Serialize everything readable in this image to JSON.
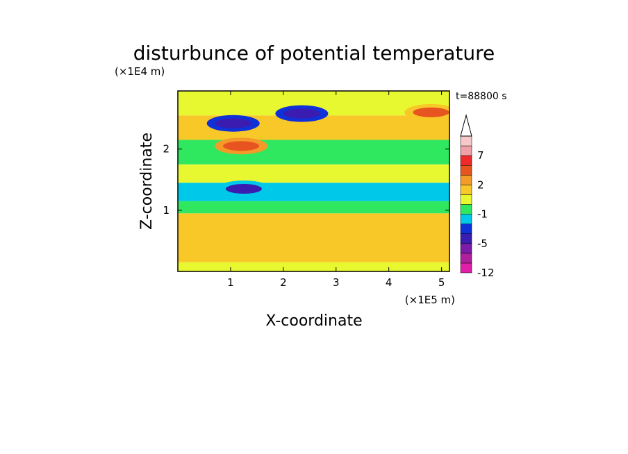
{
  "chart_data": {
    "type": "heatmap",
    "title": "disturbunce of potential temperature",
    "xlabel": "X-coordinate",
    "ylabel": "Z-coordinate",
    "x_unit": "(×1E5 m)",
    "y_unit": "(×1E4 m)",
    "time_label": "t=88800 s",
    "xlim": [
      0,
      5.15
    ],
    "ylim": [
      0,
      2.95
    ],
    "x_ticks": [
      1,
      2,
      3,
      4,
      5
    ],
    "y_ticks": [
      1,
      2
    ],
    "colorbar": {
      "levels": [
        -12,
        -9,
        -7,
        -5,
        -3,
        -2,
        -1,
        0,
        1,
        2,
        3,
        5,
        7,
        9,
        12
      ],
      "level_labels": [
        "7",
        "2",
        "-1",
        "-5",
        "-12"
      ],
      "colors": [
        "#e020a8",
        "#b0209c",
        "#7a1ca8",
        "#3a1cb0",
        "#1030d8",
        "#00c8e8",
        "#30e860",
        "#e8f830",
        "#f8c828",
        "#f49a28",
        "#e85420",
        "#ee2a2a",
        "#f0a0a8",
        "#f6c8c8"
      ],
      "extend": "max"
    },
    "field_layers": [
      {
        "z_range": [
          0.0,
          0.15
        ],
        "value": 0.5
      },
      {
        "z_range": [
          0.15,
          0.95
        ],
        "value": 1.5
      },
      {
        "z_range": [
          0.95,
          1.15
        ],
        "value": -0.5
      },
      {
        "z_range": [
          1.15,
          1.45
        ],
        "value": -1.5
      },
      {
        "z_range": [
          1.45,
          1.75
        ],
        "value": 0.5
      },
      {
        "z_range": [
          1.75,
          2.15
        ],
        "value": -0.5
      },
      {
        "z_range": [
          2.15,
          2.55
        ],
        "value": 1.5
      },
      {
        "z_range": [
          2.55,
          2.95
        ],
        "value": 0.5
      }
    ],
    "features": [
      {
        "desc": "negative anomaly",
        "x": 1.05,
        "z": 2.42,
        "value": -5
      },
      {
        "desc": "negative anomaly",
        "x": 2.35,
        "z": 2.58,
        "value": -5
      },
      {
        "desc": "positive anomaly",
        "x": 1.2,
        "z": 2.05,
        "value": 4
      },
      {
        "desc": "positive anomaly",
        "x": 4.8,
        "z": 2.6,
        "value": 3
      },
      {
        "desc": "negative anomaly",
        "x": 1.25,
        "z": 1.35,
        "value": -4
      }
    ]
  }
}
